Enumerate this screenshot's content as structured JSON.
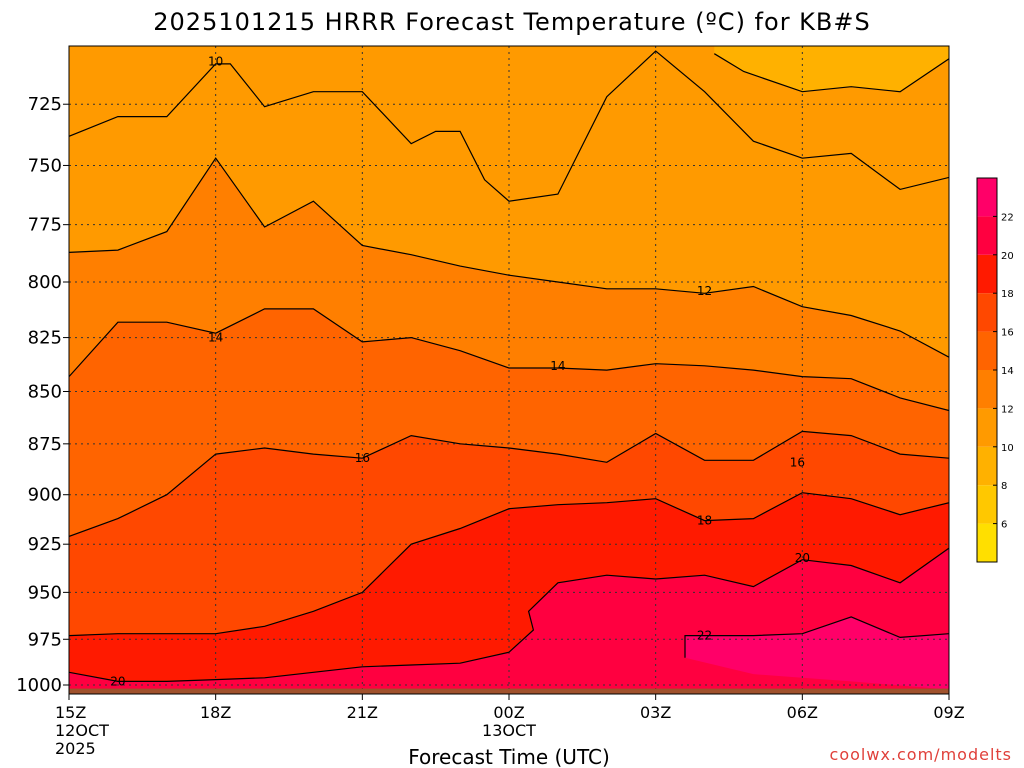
{
  "chart_data": {
    "type": "contour",
    "title": "2025101215 HRRR Forecast Temperature (ºC) for KB#S",
    "xlabel": "Forecast Time (UTC)",
    "credit": "coolwx.com/modelts",
    "x_ticks": [
      {
        "hour": 0,
        "label": "15Z",
        "sub1": "12OCT",
        "sub2": "2025"
      },
      {
        "hour": 3,
        "label": "18Z"
      },
      {
        "hour": 6,
        "label": "21Z"
      },
      {
        "hour": 9,
        "label": "00Z",
        "sub1": "13OCT"
      },
      {
        "hour": 12,
        "label": "03Z"
      },
      {
        "hour": 15,
        "label": "06Z"
      },
      {
        "hour": 18,
        "label": "09Z"
      }
    ],
    "y_axis": {
      "scale": "log-pressure",
      "reversed": true,
      "unit": "hPa",
      "range": [
        1005,
        702
      ],
      "ticks": [
        725,
        750,
        775,
        800,
        825,
        850,
        875,
        900,
        925,
        950,
        975,
        1000
      ]
    },
    "grid": "dotted",
    "surface_pressure_hPa": 1002,
    "colorbar": {
      "ticks": [
        6,
        8,
        10,
        12,
        14,
        16,
        18,
        20,
        22
      ],
      "bands": [
        {
          "min": 4,
          "max": 6,
          "color": "#ffdf00"
        },
        {
          "min": 6,
          "max": 8,
          "color": "#ffc800"
        },
        {
          "min": 8,
          "max": 10,
          "color": "#ffb100"
        },
        {
          "min": 10,
          "max": 12,
          "color": "#ff9a00"
        },
        {
          "min": 12,
          "max": 14,
          "color": "#ff7f00"
        },
        {
          "min": 14,
          "max": 16,
          "color": "#ff6400"
        },
        {
          "min": 16,
          "max": 18,
          "color": "#ff4800"
        },
        {
          "min": 18,
          "max": 20,
          "color": "#ff1a00"
        },
        {
          "min": 20,
          "max": 22,
          "color": "#ff0040"
        },
        {
          "min": 22,
          "max": 24,
          "color": "#ff0068"
        }
      ]
    },
    "contours": [
      {
        "level": 10,
        "points": [
          [
            0,
            738
          ],
          [
            1,
            730
          ],
          [
            2,
            730
          ],
          [
            3,
            709
          ],
          [
            3.3,
            709
          ],
          [
            4,
            726
          ],
          [
            5,
            720
          ],
          [
            6,
            720
          ],
          [
            7,
            741
          ],
          [
            7.5,
            736
          ],
          [
            8,
            736
          ],
          [
            8.5,
            756
          ],
          [
            9,
            765
          ],
          [
            10,
            762
          ],
          [
            11,
            722
          ],
          [
            12,
            704
          ],
          [
            13,
            720
          ],
          [
            14,
            740
          ],
          [
            15,
            747
          ],
          [
            16,
            745
          ],
          [
            17,
            760
          ],
          [
            18,
            755
          ]
        ]
      },
      {
        "level": 8,
        "points": [
          [
            13.2,
            705
          ],
          [
            13.8,
            712
          ],
          [
            15,
            720
          ],
          [
            16,
            718
          ],
          [
            17,
            720
          ],
          [
            18,
            707
          ]
        ]
      },
      {
        "level": 12,
        "points": [
          [
            0,
            787
          ],
          [
            1,
            786
          ],
          [
            2,
            778
          ],
          [
            3,
            747
          ],
          [
            4,
            776
          ],
          [
            5,
            765
          ],
          [
            6,
            784
          ],
          [
            7,
            788
          ],
          [
            8,
            793
          ],
          [
            9,
            797
          ],
          [
            10,
            800
          ],
          [
            11,
            803
          ],
          [
            12,
            803
          ],
          [
            13,
            805
          ],
          [
            14,
            802
          ],
          [
            15,
            811
          ],
          [
            16,
            815
          ],
          [
            17,
            822
          ],
          [
            18,
            834
          ]
        ]
      },
      {
        "level": 14,
        "points": [
          [
            0,
            843
          ],
          [
            1,
            818
          ],
          [
            2,
            818
          ],
          [
            3,
            823
          ],
          [
            4,
            812
          ],
          [
            5,
            812
          ],
          [
            6,
            827
          ],
          [
            7,
            825
          ],
          [
            8,
            831
          ],
          [
            9,
            839
          ],
          [
            10,
            839
          ],
          [
            11,
            840
          ],
          [
            12,
            837
          ],
          [
            13,
            838
          ],
          [
            14,
            840
          ],
          [
            15,
            843
          ],
          [
            16,
            844
          ],
          [
            17,
            853
          ],
          [
            18,
            859
          ]
        ]
      },
      {
        "level": 16,
        "points": [
          [
            0,
            921
          ],
          [
            1,
            912
          ],
          [
            2,
            900
          ],
          [
            3,
            880
          ],
          [
            4,
            877
          ],
          [
            5,
            880
          ],
          [
            6,
            882
          ],
          [
            7,
            871
          ],
          [
            8,
            875
          ],
          [
            9,
            877
          ],
          [
            10,
            880
          ],
          [
            11,
            884
          ],
          [
            12,
            870
          ],
          [
            13,
            883
          ],
          [
            14,
            883
          ],
          [
            15,
            869
          ],
          [
            16,
            871
          ],
          [
            17,
            880
          ],
          [
            18,
            882
          ]
        ]
      },
      {
        "level": 18,
        "points": [
          [
            0,
            973
          ],
          [
            1,
            972
          ],
          [
            2,
            972
          ],
          [
            3,
            972
          ],
          [
            4,
            968
          ],
          [
            5,
            960
          ],
          [
            6,
            950
          ],
          [
            7,
            925
          ],
          [
            8,
            917
          ],
          [
            9,
            907
          ],
          [
            10,
            905
          ],
          [
            11,
            904
          ],
          [
            12,
            902
          ],
          [
            13,
            913
          ],
          [
            14,
            912
          ],
          [
            15,
            899
          ],
          [
            16,
            902
          ],
          [
            17,
            910
          ],
          [
            18,
            904
          ]
        ]
      },
      {
        "level": 20,
        "points": [
          [
            0,
            993
          ],
          [
            1,
            998
          ],
          [
            2,
            998
          ],
          [
            3,
            997
          ],
          [
            4,
            996
          ],
          [
            5,
            993
          ],
          [
            6,
            990
          ],
          [
            7,
            989
          ],
          [
            8,
            988
          ],
          [
            9,
            982
          ],
          [
            9.5,
            970
          ],
          [
            9.4,
            960
          ],
          [
            10,
            945
          ],
          [
            11,
            941
          ],
          [
            12,
            943
          ],
          [
            13,
            941
          ],
          [
            14,
            947
          ],
          [
            15,
            933
          ],
          [
            16,
            936
          ],
          [
            17,
            945
          ],
          [
            18,
            927
          ]
        ]
      },
      {
        "level": 22,
        "points": [
          [
            12.6,
            985
          ],
          [
            12.6,
            973
          ],
          [
            14,
            973
          ],
          [
            15,
            972
          ],
          [
            16,
            963
          ],
          [
            17,
            974
          ],
          [
            18,
            972
          ]
        ]
      }
    ],
    "contour_labels": [
      {
        "text": "10",
        "hour": 3,
        "p": 708
      },
      {
        "text": "12",
        "hour": 13,
        "p": 804
      },
      {
        "text": "14",
        "hour": 3,
        "p": 825
      },
      {
        "text": "14",
        "hour": 10,
        "p": 838
      },
      {
        "text": "16",
        "hour": 6,
        "p": 882
      },
      {
        "text": "16",
        "hour": 14.9,
        "p": 884
      },
      {
        "text": "18",
        "hour": 13,
        "p": 913
      },
      {
        "text": "20",
        "hour": 15,
        "p": 932
      },
      {
        "text": "20",
        "hour": 1,
        "p": 998
      },
      {
        "text": "22",
        "hour": 13,
        "p": 973
      }
    ]
  }
}
